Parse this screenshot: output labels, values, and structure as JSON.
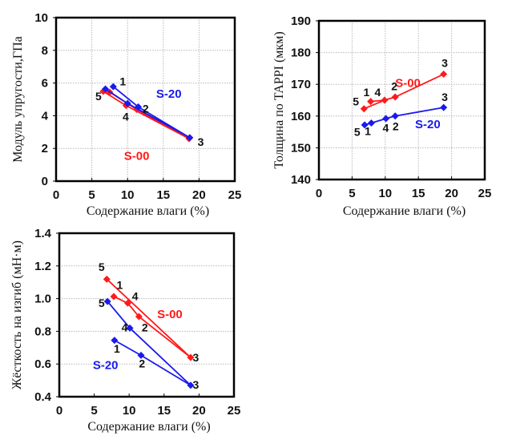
{
  "colors": {
    "S-00": "#ff1a1a",
    "S-20": "#1a1aee"
  },
  "chart_data": [
    {
      "id": "modulus",
      "type": "line",
      "title": "",
      "xlabel": "Содержание влаги (%)",
      "ylabel": "Модуль упругости,ГПа",
      "xlim": [
        0,
        25
      ],
      "ylim": [
        0,
        10
      ],
      "xticks": [
        "0",
        "5",
        "10",
        "15",
        "20",
        "25"
      ],
      "yticks": [
        "0",
        "2",
        "4",
        "6",
        "8",
        "10"
      ],
      "grid": "both",
      "series": [
        {
          "name": "S-00",
          "label_pos": [
            9.5,
            1.3
          ],
          "points": [
            {
              "id": "1",
              "x": 7.5,
              "y": 5.44
            },
            {
              "id": "2",
              "x": 11.3,
              "y": 4.38
            },
            {
              "id": "3",
              "x": 18.6,
              "y": 2.6
            },
            {
              "id": "4",
              "x": 9.8,
              "y": 4.62
            },
            {
              "id": "5",
              "x": 6.6,
              "y": 5.49
            }
          ],
          "paths": [
            [
              "1",
              "2",
              "3"
            ],
            [
              "5",
              "4",
              "3"
            ]
          ]
        },
        {
          "name": "S-20",
          "label_pos": [
            14,
            5.1
          ],
          "points": [
            {
              "id": "1",
              "x": 8.0,
              "y": 5.78
            },
            {
              "id": "2",
              "x": 11.5,
              "y": 4.54
            },
            {
              "id": "3",
              "x": 18.7,
              "y": 2.66
            },
            {
              "id": "4",
              "x": 10.0,
              "y": 4.75
            },
            {
              "id": "5",
              "x": 6.9,
              "y": 5.64
            }
          ],
          "paths": [
            [
              "1",
              "2",
              "3"
            ],
            [
              "5",
              "4",
              "3"
            ]
          ]
        }
      ],
      "point_labels": [
        {
          "text": "1",
          "x": 8.9,
          "y": 5.85
        },
        {
          "text": "2",
          "x": 12.1,
          "y": 4.2
        },
        {
          "text": "3",
          "x": 19.8,
          "y": 2.15
        },
        {
          "text": "4",
          "x": 9.3,
          "y": 3.7
        },
        {
          "text": "5",
          "x": 5.5,
          "y": 4.95
        }
      ]
    },
    {
      "id": "thickness",
      "type": "line",
      "title": "",
      "xlabel": "Содержание влаги (%)",
      "ylabel": "Толщина по TAPPI (мкм)",
      "xlim": [
        0,
        25
      ],
      "ylim": [
        140,
        190
      ],
      "xticks": [
        "0",
        "5",
        "10",
        "15",
        "20",
        "25"
      ],
      "yticks": [
        "140",
        "150",
        "160",
        "170",
        "180",
        "190"
      ],
      "grid": "both",
      "series": [
        {
          "name": "S-00",
          "label_pos": [
            11.5,
            169.2
          ],
          "points": [
            {
              "id": "1",
              "x": 7.8,
              "y": 164.6
            },
            {
              "id": "2",
              "x": 11.5,
              "y": 166.0
            },
            {
              "id": "3",
              "x": 18.8,
              "y": 173.2
            },
            {
              "id": "4",
              "x": 9.9,
              "y": 165.0
            },
            {
              "id": "5",
              "x": 6.8,
              "y": 162.3
            }
          ],
          "paths": [
            [
              "5",
              "4",
              "2",
              "3"
            ],
            [
              "1",
              "4"
            ]
          ]
        },
        {
          "name": "S-20",
          "label_pos": [
            14.5,
            156.2
          ],
          "points": [
            {
              "id": "1",
              "x": 7.9,
              "y": 157.8
            },
            {
              "id": "2",
              "x": 11.5,
              "y": 160.0
            },
            {
              "id": "3",
              "x": 18.8,
              "y": 162.7
            },
            {
              "id": "4",
              "x": 10.1,
              "y": 159.2
            },
            {
              "id": "5",
              "x": 6.9,
              "y": 157.2
            }
          ],
          "paths": [
            [
              "5",
              "1",
              "4",
              "2",
              "3"
            ]
          ]
        }
      ],
      "point_labels": [
        {
          "text": "5",
          "x": 5.1,
          "y": 163.3
        },
        {
          "text": "1",
          "x": 6.7,
          "y": 166.2
        },
        {
          "text": "4",
          "x": 8.4,
          "y": 166.2
        },
        {
          "text": "2",
          "x": 10.9,
          "y": 168.1
        },
        {
          "text": "3",
          "x": 18.5,
          "y": 175.5
        },
        {
          "text": "5",
          "x": 5.3,
          "y": 153.7
        },
        {
          "text": "1",
          "x": 6.9,
          "y": 154.0
        },
        {
          "text": "4",
          "x": 9.6,
          "y": 155.0
        },
        {
          "text": "2",
          "x": 11.1,
          "y": 155.5
        },
        {
          "text": "3",
          "x": 18.5,
          "y": 164.7
        }
      ]
    },
    {
      "id": "stiffness",
      "type": "line",
      "title": "",
      "xlabel": "Содержание влаги (%)",
      "ylabel": "Жёсткость на изгиб (мН·м)",
      "xlim": [
        0,
        25
      ],
      "ylim": [
        0.4,
        1.4
      ],
      "xticks": [
        "0",
        "5",
        "10",
        "15",
        "20",
        "25"
      ],
      "yticks": [
        "0.4",
        "0.6",
        "0.8",
        "1.0",
        "1.2",
        "1.4"
      ],
      "grid": "horizontal",
      "series": [
        {
          "name": "S-00",
          "label_pos": [
            14,
            0.88
          ],
          "points": [
            {
              "id": "1",
              "x": 7.8,
              "y": 1.013
            },
            {
              "id": "2",
              "x": 11.4,
              "y": 0.89
            },
            {
              "id": "3",
              "x": 18.8,
              "y": 0.64
            },
            {
              "id": "4",
              "x": 9.8,
              "y": 0.972
            },
            {
              "id": "5",
              "x": 6.8,
              "y": 1.119
            }
          ],
          "paths": [
            [
              "1",
              "4",
              "2",
              "3"
            ],
            [
              "5",
              "3"
            ]
          ]
        },
        {
          "name": "S-20",
          "label_pos": [
            4.8,
            0.57
          ],
          "points": [
            {
              "id": "1",
              "x": 7.9,
              "y": 0.745
            },
            {
              "id": "2",
              "x": 11.7,
              "y": 0.653
            },
            {
              "id": "3",
              "x": 18.8,
              "y": 0.47
            },
            {
              "id": "4",
              "x": 10.1,
              "y": 0.82
            },
            {
              "id": "5",
              "x": 6.9,
              "y": 0.983
            }
          ],
          "paths": [
            [
              "1",
              "2",
              "3"
            ],
            [
              "5",
              "4",
              "3"
            ]
          ]
        }
      ],
      "point_labels": [
        {
          "text": "5",
          "x": 5.6,
          "y": 1.17
        },
        {
          "text": "1",
          "x": 8.2,
          "y": 1.06
        },
        {
          "text": "4",
          "x": 10.4,
          "y": 0.99
        },
        {
          "text": "2",
          "x": 11.8,
          "y": 0.8
        },
        {
          "text": "3",
          "x": 19.1,
          "y": 0.615
        },
        {
          "text": "5",
          "x": 5.6,
          "y": 0.95
        },
        {
          "text": "4",
          "x": 8.9,
          "y": 0.8
        },
        {
          "text": "1",
          "x": 7.8,
          "y": 0.67
        },
        {
          "text": "2",
          "x": 11.4,
          "y": 0.58
        },
        {
          "text": "3",
          "x": 19.1,
          "y": 0.45
        }
      ]
    }
  ]
}
